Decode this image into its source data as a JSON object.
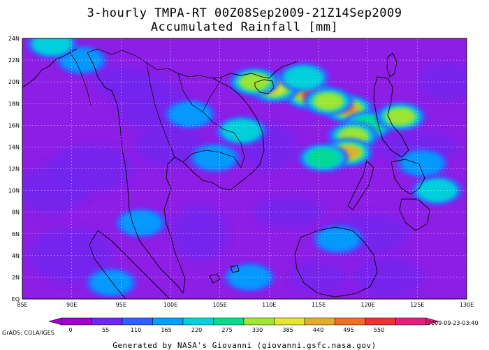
{
  "title_line1": "3-hourly TMPA-RT 00Z08Sep2009-21Z14Sep2009",
  "title_line2": "Accumulated Rainfall [mm]",
  "lat_labels": [
    "24N",
    "22N",
    "20N",
    "18N",
    "16N",
    "14N",
    "12N",
    "10N",
    "8N",
    "6N",
    "4N",
    "2N",
    "EQ"
  ],
  "lon_labels": [
    "85E",
    "90E",
    "95E",
    "100E",
    "105E",
    "110E",
    "115E",
    "120E",
    "125E",
    "130E"
  ],
  "colorbar": {
    "labels": [
      "0",
      "55",
      "110",
      "165",
      "220",
      "275",
      "330",
      "385",
      "440",
      "495",
      "550"
    ],
    "colors": [
      "#a000c8",
      "#6e28f0",
      "#3060ff",
      "#00a0ff",
      "#00d2dc",
      "#00dc8c",
      "#9ee632",
      "#e6e632",
      "#e6aa32",
      "#f06e28",
      "#f03232",
      "#e61e7d"
    ]
  },
  "background_color": "#8c1ee6",
  "grads_label": "GrADS: COLA/IGES",
  "timestamp": "2009-09-23-03:40",
  "credit": "Generated by NASA's Giovanni (giovanni.gsfc.nasa.gov)",
  "rain_features": [
    {
      "lon": 118,
      "lat": 17.5,
      "value": 470
    },
    {
      "lon": 114,
      "lat": 18.8,
      "value": 520
    },
    {
      "lon": 116,
      "lat": 18.2,
      "value": 300
    },
    {
      "lon": 120,
      "lat": 16.0,
      "value": 250
    },
    {
      "lon": 118.5,
      "lat": 15.0,
      "value": 330
    },
    {
      "lon": 118.0,
      "lat": 13.5,
      "value": 420
    },
    {
      "lon": 115.5,
      "lat": 13.0,
      "value": 260
    },
    {
      "lon": 110.5,
      "lat": 19.4,
      "value": 390
    },
    {
      "lon": 108.5,
      "lat": 20.0,
      "value": 330
    },
    {
      "lon": 113.5,
      "lat": 20.4,
      "value": 200
    },
    {
      "lon": 123.3,
      "lat": 16.8,
      "value": 300
    },
    {
      "lon": 107.2,
      "lat": 15.5,
      "value": 230
    },
    {
      "lon": 104.5,
      "lat": 13.0,
      "value": 190
    },
    {
      "lon": 102.0,
      "lat": 17.0,
      "value": 170
    },
    {
      "lon": 91.0,
      "lat": 22.0,
      "value": 180
    },
    {
      "lon": 88.0,
      "lat": 23.5,
      "value": 200
    },
    {
      "lon": 97.0,
      "lat": 7.0,
      "value": 160
    },
    {
      "lon": 94.0,
      "lat": 1.5,
      "value": 180
    },
    {
      "lon": 108.0,
      "lat": 2.0,
      "value": 170
    },
    {
      "lon": 117.0,
      "lat": 5.5,
      "value": 170
    },
    {
      "lon": 127.0,
      "lat": 10.0,
      "value": 200
    },
    {
      "lon": 125.5,
      "lat": 12.5,
      "value": 180
    }
  ]
}
